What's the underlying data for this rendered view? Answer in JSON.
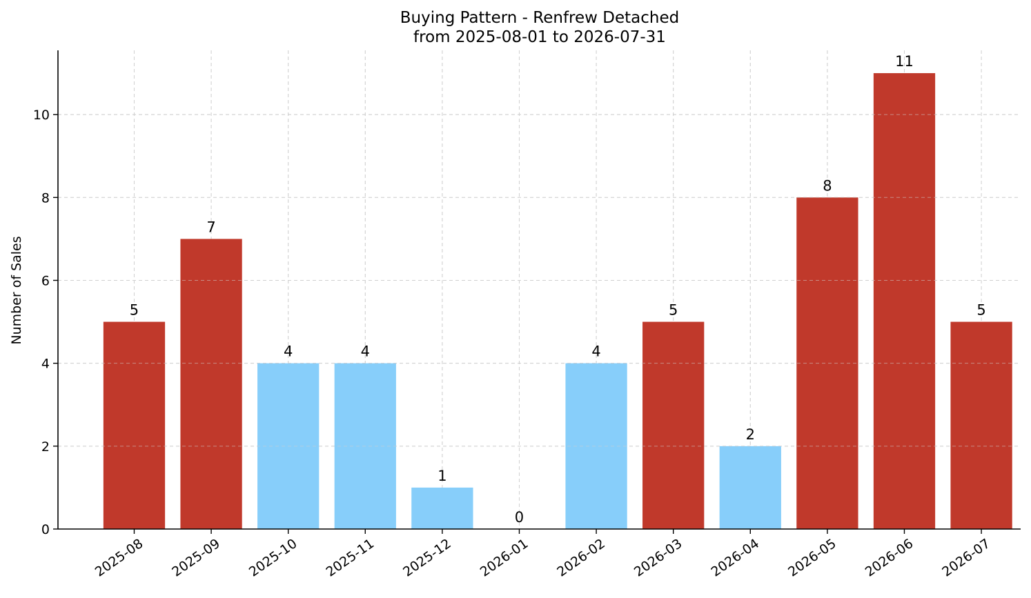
{
  "chart_data": {
    "type": "bar",
    "title_line1": "Buying Pattern - Renfrew Detached",
    "title_line2": "from 2025-08-01 to 2026-07-31",
    "xlabel": "",
    "ylabel": "Number of Sales",
    "ylim": [
      0,
      11.55
    ],
    "yticks": [
      0,
      2,
      4,
      6,
      8,
      10
    ],
    "grid": true,
    "colors": {
      "high": "#c0392b",
      "low": "#87cefa"
    },
    "categories": [
      "2025-08",
      "2025-09",
      "2025-10",
      "2025-11",
      "2025-12",
      "2026-01",
      "2026-02",
      "2026-03",
      "2026-04",
      "2026-05",
      "2026-06",
      "2026-07"
    ],
    "values": [
      5,
      7,
      4,
      4,
      1,
      0,
      4,
      5,
      2,
      8,
      11,
      5
    ],
    "bar_colors": [
      "high",
      "high",
      "low",
      "low",
      "low",
      "low",
      "low",
      "high",
      "low",
      "high",
      "high",
      "high"
    ]
  }
}
